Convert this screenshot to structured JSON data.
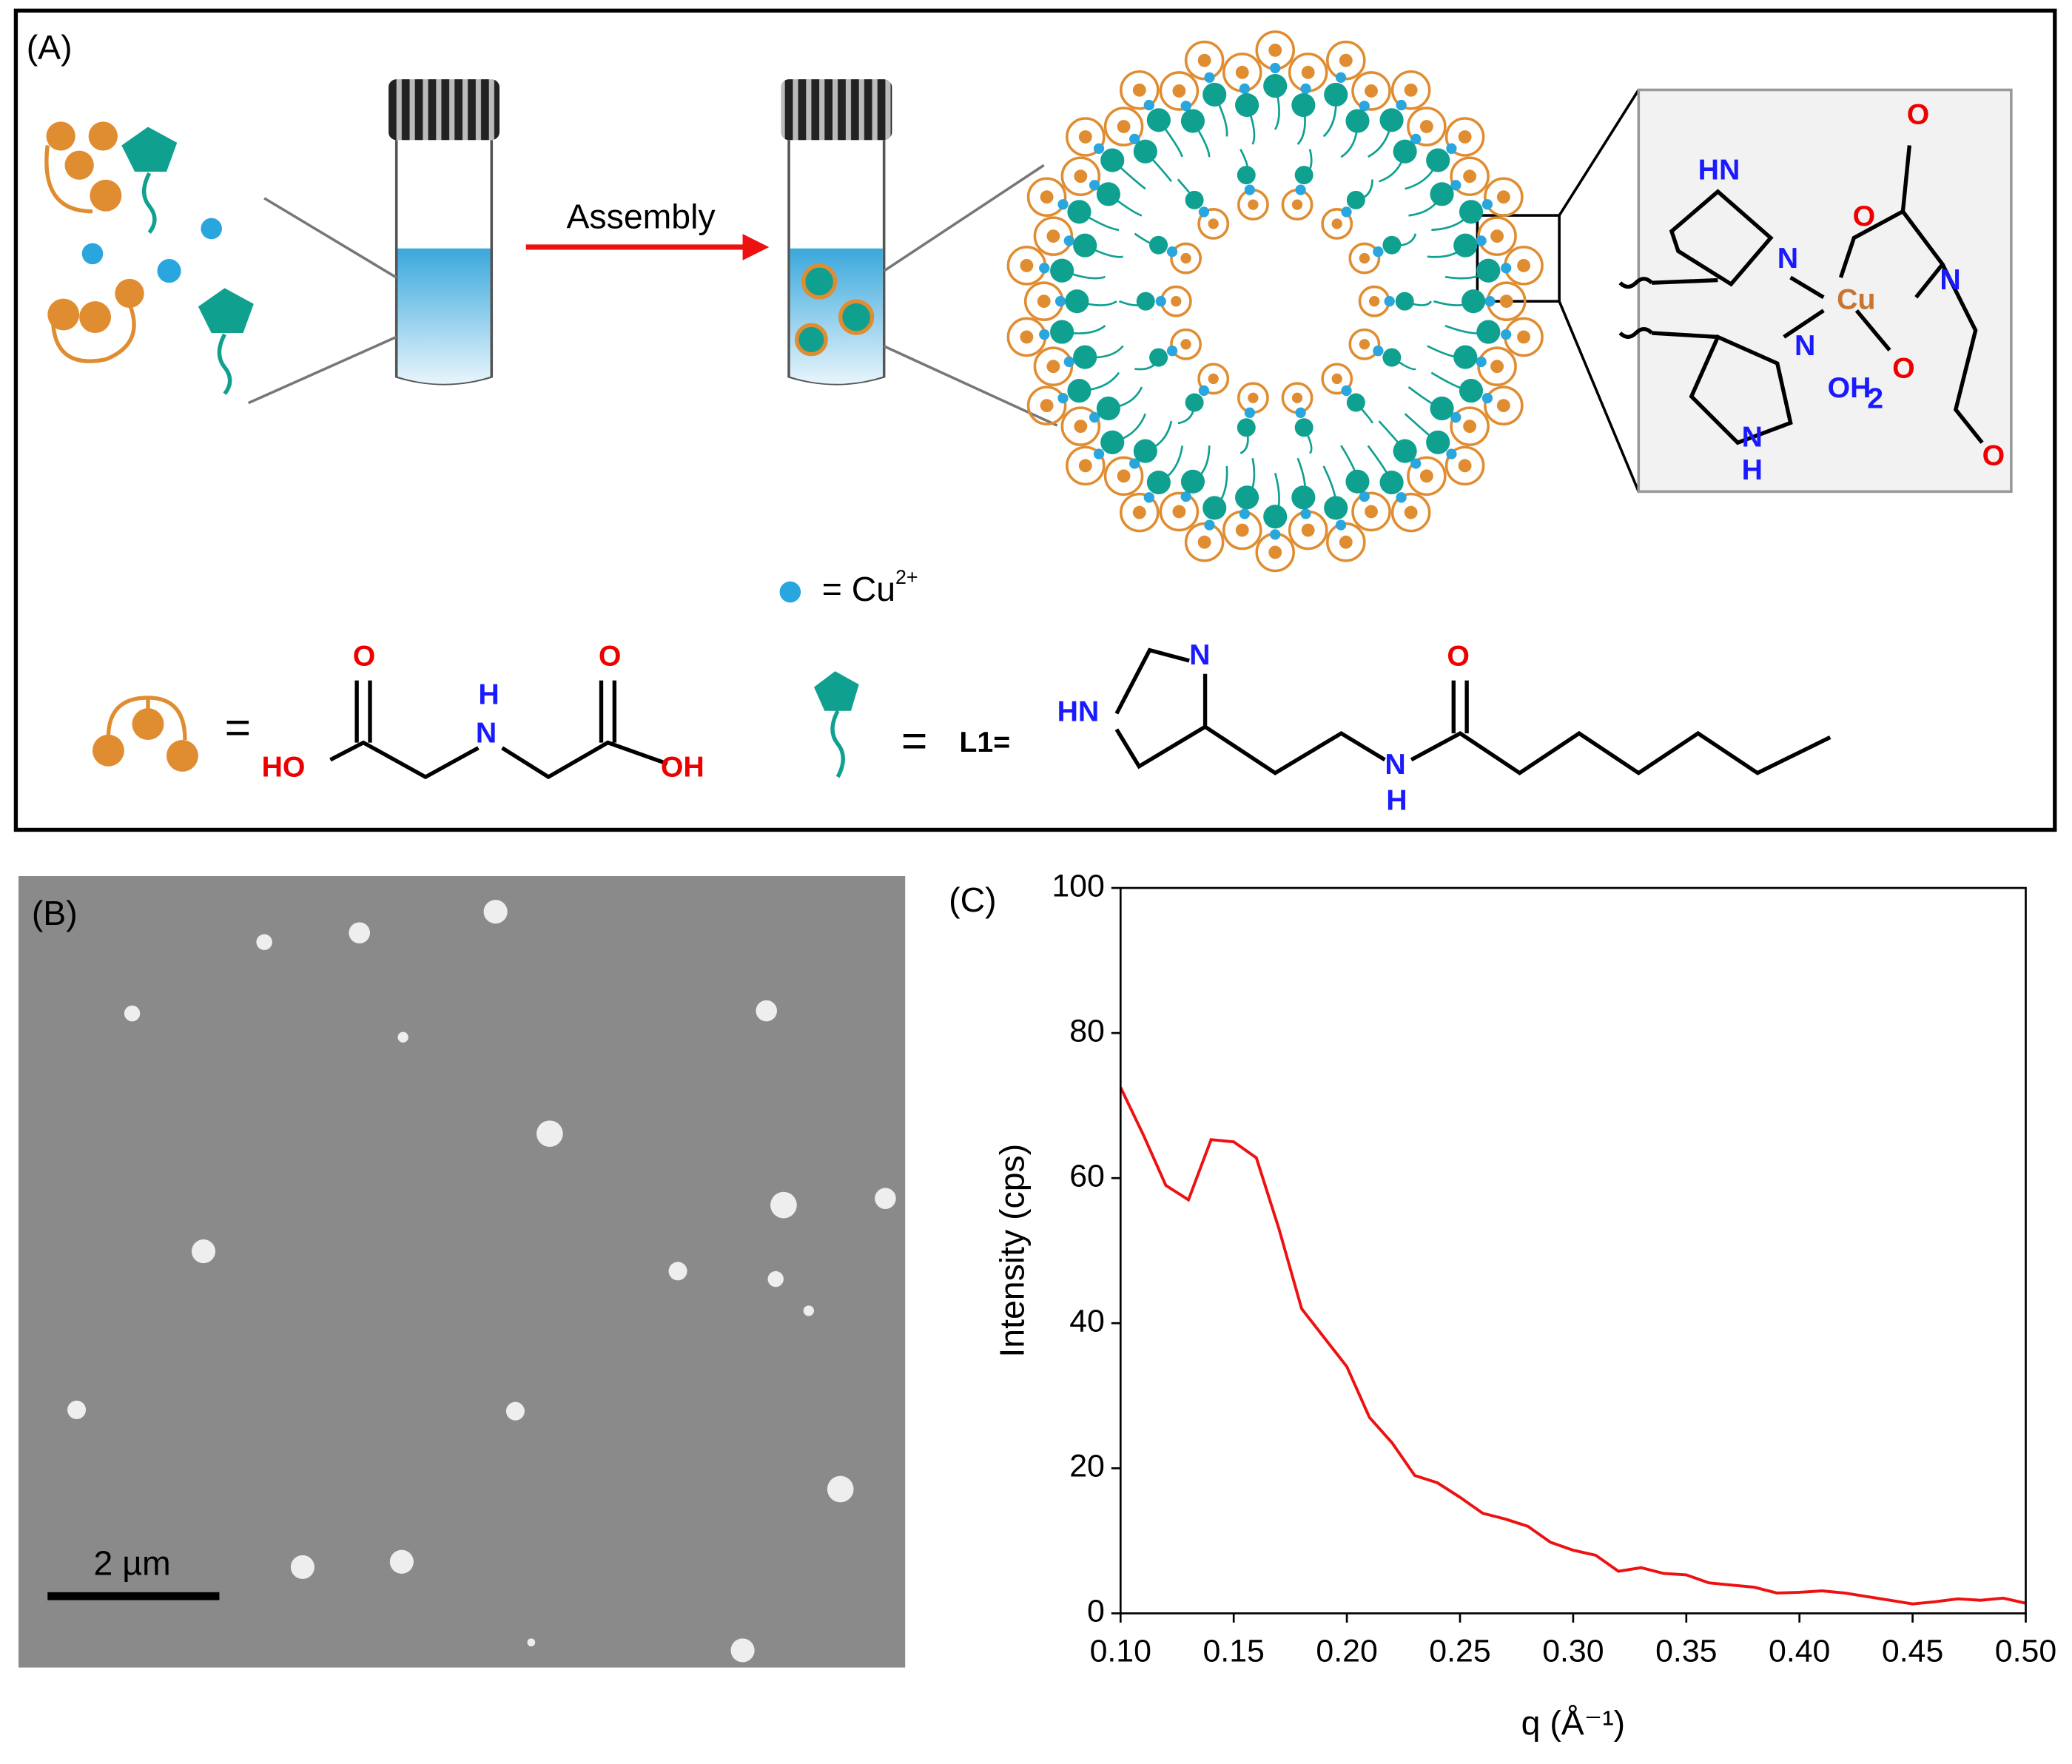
{
  "panel_a": {
    "label": "(A)",
    "arrow_label": "Assembly",
    "cu_legend": {
      "text": "= Cu",
      "sup": "2+"
    },
    "complex": [
      "HN",
      "N",
      "N",
      "N",
      "H",
      "O",
      "O",
      "N",
      "O",
      "OH",
      "2",
      "O",
      "Cu"
    ],
    "ida": [
      "=",
      "HO",
      "O",
      "H",
      "N",
      "O",
      "OH"
    ],
    "l1": [
      "=",
      "L1=",
      "HN",
      "N",
      "N",
      "H",
      "O"
    ]
  },
  "panel_b": {
    "label": "(B)",
    "scale_bar": "2 µm"
  },
  "panel_c": {
    "label": "(C)"
  },
  "chart_data": {
    "type": "line",
    "xlabel": "q (Å⁻¹)",
    "ylabel": "Intensity (cps)",
    "color": "#ee1111",
    "x": [
      0.1,
      0.11,
      0.12,
      0.13,
      0.14,
      0.15,
      0.16,
      0.17,
      0.18,
      0.19,
      0.2,
      0.21,
      0.22,
      0.23,
      0.24,
      0.25,
      0.26,
      0.27,
      0.28,
      0.29,
      0.3,
      0.31,
      0.32,
      0.33,
      0.34,
      0.35,
      0.36,
      0.37,
      0.38,
      0.39,
      0.4,
      0.41,
      0.42,
      0.43,
      0.44,
      0.45,
      0.46,
      0.47,
      0.48,
      0.49,
      0.5
    ],
    "values": [
      72.5,
      66,
      59,
      57,
      65.3,
      65,
      62.8,
      53,
      42,
      38,
      34,
      27,
      23.5,
      19,
      18,
      16,
      13.8,
      13,
      12,
      9.8,
      8.7,
      8,
      5.8,
      6.3,
      5.5,
      5.3,
      4.2,
      3.9,
      3.6,
      2.8,
      2.9,
      3.1,
      2.8,
      2.3,
      1.8,
      1.3,
      1.6,
      2,
      1.8,
      2.1,
      1.4
    ],
    "xlim": [
      0.1,
      0.5
    ],
    "xticks": [
      {
        "value": 0.1,
        "label": "0.10"
      },
      {
        "value": 0.15,
        "label": "0.15"
      },
      {
        "value": 0.2,
        "label": "0.20"
      },
      {
        "value": 0.25,
        "label": "0.25"
      },
      {
        "value": 0.3,
        "label": "0.30"
      },
      {
        "value": 0.35,
        "label": "0.35"
      },
      {
        "value": 0.4,
        "label": "0.40"
      },
      {
        "value": 0.45,
        "label": "0.45"
      },
      {
        "value": 0.5,
        "label": "0.50"
      }
    ],
    "ylim": [
      0,
      100
    ],
    "yticks": [
      0,
      20,
      40,
      60,
      80,
      100
    ]
  }
}
